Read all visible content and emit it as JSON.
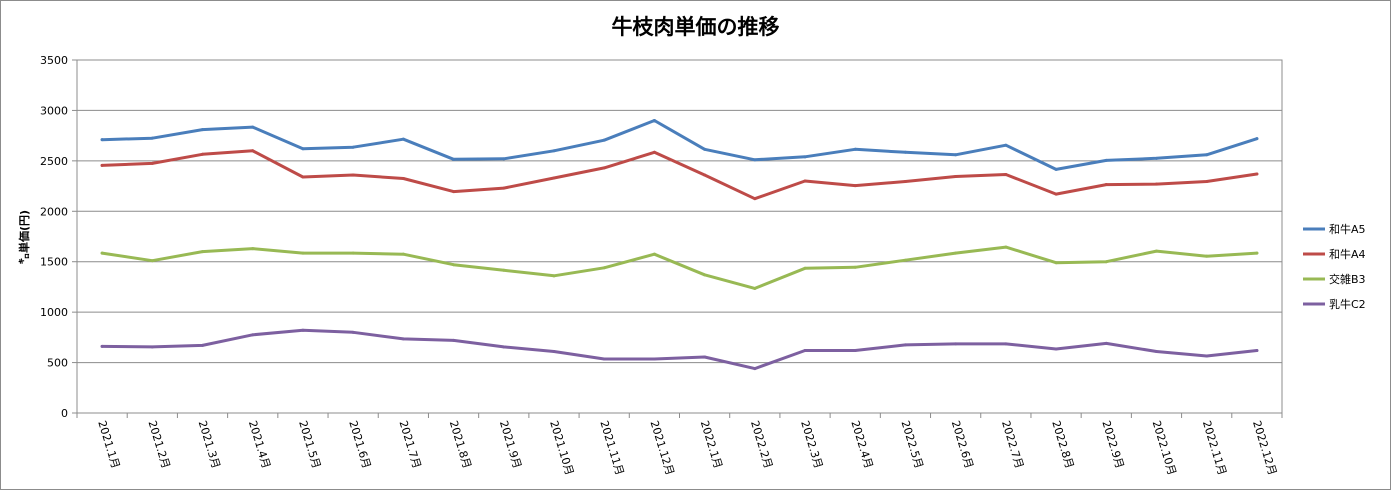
{
  "chart_data": {
    "type": "line",
    "title": "牛枝肉単価の推移",
    "ylabel": "㌔単価(円)",
    "ylim": [
      0,
      3500
    ],
    "yticks": [
      0,
      500,
      1000,
      1500,
      2000,
      2500,
      3000,
      3500
    ],
    "grid": true,
    "legend": "right",
    "categories": [
      "2021.1月",
      "2021.2月",
      "2021.3月",
      "2021.4月",
      "2021.5月",
      "2021.6月",
      "2021.7月",
      "2021.8月",
      "2021.9月",
      "2021.10月",
      "2021.11月",
      "2021.12月",
      "2022.1月",
      "2022.2月",
      "2022.3月",
      "2022.4月",
      "2022.5月",
      "2022.6月",
      "2022.7月",
      "2022.8月",
      "2022.9月",
      "2022.10月",
      "2022.11月",
      "2022.12月"
    ],
    "series": [
      {
        "name": "和牛A5",
        "color": "#4a7ebb",
        "values": [
          2710,
          2725,
          2810,
          2835,
          2620,
          2635,
          2715,
          2515,
          2520,
          2600,
          2705,
          2900,
          2615,
          2510,
          2540,
          2615,
          2585,
          2560,
          2655,
          2415,
          2505,
          2525,
          2560,
          2720
        ]
      },
      {
        "name": "和牛A4",
        "color": "#be4b48",
        "values": [
          2455,
          2475,
          2565,
          2600,
          2340,
          2360,
          2325,
          2195,
          2230,
          2330,
          2430,
          2585,
          2360,
          2125,
          2300,
          2255,
          2295,
          2345,
          2365,
          2170,
          2265,
          2270,
          2295,
          2370
        ]
      },
      {
        "name": "交雑B3",
        "color": "#98b954",
        "values": [
          1585,
          1510,
          1600,
          1630,
          1585,
          1585,
          1575,
          1470,
          1415,
          1360,
          1440,
          1575,
          1370,
          1235,
          1435,
          1445,
          1515,
          1585,
          1645,
          1490,
          1500,
          1605,
          1555,
          1585
        ]
      },
      {
        "name": "乳牛C2",
        "color": "#7d60a0",
        "values": [
          660,
          655,
          670,
          775,
          820,
          800,
          735,
          720,
          655,
          610,
          535,
          535,
          555,
          440,
          620,
          620,
          675,
          685,
          685,
          635,
          690,
          610,
          565,
          620
        ]
      }
    ]
  }
}
